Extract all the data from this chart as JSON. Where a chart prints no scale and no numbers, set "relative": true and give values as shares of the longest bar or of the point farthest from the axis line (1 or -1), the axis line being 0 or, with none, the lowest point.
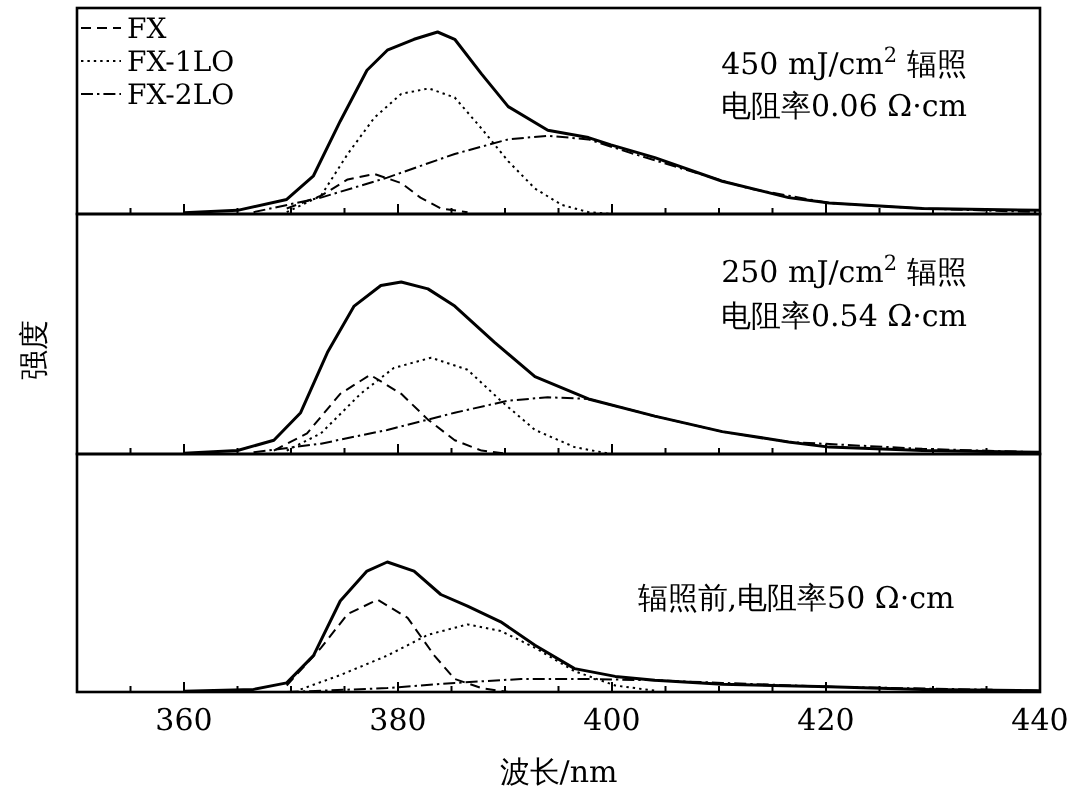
{
  "chart_data": [
    {
      "type": "line",
      "relative": true,
      "xlim": [
        350,
        440
      ],
      "xticks": [
        {
          "value": 355,
          "label": null
        },
        360,
        {
          "value": 365,
          "label": null
        },
        {
          "value": 370,
          "label": null
        },
        {
          "value": 375,
          "label": null
        },
        380,
        {
          "value": 385,
          "label": null
        },
        {
          "value": 390,
          "label": null
        },
        {
          "value": 395,
          "label": null
        },
        400,
        {
          "value": 405,
          "label": null
        },
        {
          "value": 410,
          "label": null
        },
        {
          "value": 415,
          "label": null
        },
        420,
        {
          "value": 425,
          "label": null
        },
        {
          "value": 430,
          "label": null
        },
        {
          "value": 435,
          "label": null
        },
        440
      ],
      "tick_labels": false,
      "legend": "top left",
      "grid": false,
      "marker": "none",
      "annotations": [
        "450 mJ/cm$^{2}$ 辐照",
        "电阻率0.06 Ω·cm"
      ],
      "series": [
        {
          "color": "#000000",
          "line_style": "solid",
          "x": [
            360,
            365,
            369.6,
            372.1,
            374.6,
            377.1,
            379,
            381.5,
            383.7,
            385.3,
            387.8,
            390.3,
            394,
            397.8,
            399.9,
            404,
            410.3,
            416.5,
            420.3,
            429,
            440
          ],
          "values": [
            0.007,
            0.02,
            0.08,
            0.21,
            0.51,
            0.79,
            0.9,
            0.96,
            1.0,
            0.96,
            0.77,
            0.59,
            0.46,
            0.42,
            0.38,
            0.31,
            0.18,
            0.09,
            0.06,
            0.03,
            0.02
          ]
        },
        {
          "name": "FX",
          "color": "#000000",
          "line_style": "dashed",
          "x": [
            369.6,
            372.8,
            375.3,
            377.8,
            380.3,
            382.1,
            384,
            386.5
          ],
          "values": [
            0.03,
            0.1,
            0.19,
            0.22,
            0.17,
            0.09,
            0.03,
            0.01
          ]
        },
        {
          "name": "FX-1LO",
          "color": "#000000",
          "line_style": "dotted",
          "x": [
            369.6,
            372.8,
            375.3,
            377.8,
            380.3,
            382.9,
            385.3,
            387.8,
            390.3,
            392.8,
            395.3,
            397.8,
            399.9
          ],
          "values": [
            0.01,
            0.1,
            0.33,
            0.53,
            0.66,
            0.69,
            0.64,
            0.47,
            0.29,
            0.14,
            0.05,
            0.01,
            0
          ]
        },
        {
          "name": "FX-2LO",
          "color": "#000000",
          "line_style": "dashdot",
          "x": [
            366.5,
            372.8,
            379,
            385.3,
            390.3,
            394,
            397.8,
            401.5,
            406.5,
            412.8,
            420.3,
            429,
            440
          ],
          "values": [
            0.01,
            0.09,
            0.2,
            0.33,
            0.41,
            0.43,
            0.41,
            0.34,
            0.25,
            0.14,
            0.06,
            0.03,
            0.01
          ]
        }
      ]
    },
    {
      "type": "line",
      "relative": true,
      "xlim": [
        350,
        440
      ],
      "xticks": [
        {
          "value": 355,
          "label": null
        },
        360,
        {
          "value": 365,
          "label": null
        },
        {
          "value": 370,
          "label": null
        },
        {
          "value": 375,
          "label": null
        },
        380,
        {
          "value": 385,
          "label": null
        },
        {
          "value": 390,
          "label": null
        },
        {
          "value": 395,
          "label": null
        },
        400,
        {
          "value": 405,
          "label": null
        },
        {
          "value": 410,
          "label": null
        },
        {
          "value": 415,
          "label": null
        },
        420,
        {
          "value": 425,
          "label": null
        },
        {
          "value": 430,
          "label": null
        },
        {
          "value": 435,
          "label": null
        },
        440
      ],
      "tick_labels": false,
      "legend": false,
      "grid": false,
      "marker": "none",
      "ylabel": "强度",
      "annotations": [
        "250 mJ/cm$^{2}$ 辐照",
        "电阻率0.54 Ω·cm"
      ],
      "series": [
        {
          "color": "#000000",
          "line_style": "solid",
          "x": [
            360,
            365,
            368.4,
            370.9,
            373.4,
            375.9,
            378.4,
            380.3,
            382.8,
            385.3,
            389,
            392.8,
            397.8,
            404,
            410.3,
            416.5,
            420.3,
            429,
            440
          ],
          "values": [
            0.004,
            0.02,
            0.08,
            0.24,
            0.59,
            0.86,
            0.98,
            1.0,
            0.96,
            0.86,
            0.65,
            0.45,
            0.32,
            0.22,
            0.13,
            0.07,
            0.04,
            0.02,
            0.01
          ]
        },
        {
          "color": "#000000",
          "line_style": "dashed",
          "x": [
            368.4,
            371.5,
            374.6,
            377.4,
            380.3,
            382.8,
            385.3,
            387.8,
            390.3
          ],
          "values": [
            0.02,
            0.12,
            0.35,
            0.46,
            0.35,
            0.2,
            0.08,
            0.02,
            0
          ]
        },
        {
          "color": "#000000",
          "line_style": "dotted",
          "x": [
            369.6,
            372.8,
            376.5,
            379.6,
            383.1,
            386.5,
            389.6,
            392.8,
            396.5,
            399.9
          ],
          "values": [
            0.02,
            0.12,
            0.35,
            0.5,
            0.56,
            0.49,
            0.31,
            0.14,
            0.04,
            0
          ]
        },
        {
          "color": "#000000",
          "line_style": "dashdot",
          "x": [
            366.5,
            372.8,
            379,
            385.3,
            390.3,
            394,
            397.8,
            404,
            410.3,
            416.5,
            429,
            440
          ],
          "values": [
            0.01,
            0.06,
            0.14,
            0.24,
            0.31,
            0.33,
            0.32,
            0.22,
            0.13,
            0.07,
            0.03,
            0.01
          ]
        }
      ]
    },
    {
      "type": "line",
      "relative": true,
      "xlim": [
        350,
        440
      ],
      "xticks": [
        {
          "value": 355,
          "label": null
        },
        {
          "value": 360,
          "label": "360"
        },
        {
          "value": 365,
          "label": null
        },
        {
          "value": 370,
          "label": null
        },
        {
          "value": 375,
          "label": null
        },
        {
          "value": 380,
          "label": "380"
        },
        {
          "value": 385,
          "label": null
        },
        {
          "value": 390,
          "label": null
        },
        {
          "value": 395,
          "label": null
        },
        {
          "value": 400,
          "label": "400"
        },
        {
          "value": 405,
          "label": null
        },
        {
          "value": 410,
          "label": null
        },
        {
          "value": 415,
          "label": null
        },
        {
          "value": 420,
          "label": "420"
        },
        {
          "value": 425,
          "label": null
        },
        {
          "value": 430,
          "label": null
        },
        {
          "value": 435,
          "label": null
        },
        {
          "value": 440,
          "label": "440"
        }
      ],
      "tick_labels": "x",
      "legend": false,
      "grid": false,
      "marker": "none",
      "xlabel": "波长/nm",
      "annotations": [
        "辐照前,电阻率50 Ω·cm"
      ],
      "series": [
        {
          "color": "#000000",
          "line_style": "solid",
          "x": [
            360,
            366.5,
            369.6,
            372.1,
            374.6,
            377.1,
            379,
            381.5,
            384,
            386.5,
            389.6,
            392.8,
            396.5,
            400.3,
            404,
            410.3,
            420.3,
            429,
            440
          ],
          "values": [
            0.005,
            0.02,
            0.07,
            0.28,
            0.7,
            0.93,
            1.0,
            0.93,
            0.75,
            0.66,
            0.54,
            0.36,
            0.18,
            0.12,
            0.09,
            0.06,
            0.04,
            0.02,
            0.01
          ]
        },
        {
          "color": "#000000",
          "line_style": "dashed",
          "x": [
            369.6,
            372.8,
            375.3,
            378.1,
            380.9,
            383.4,
            385.3,
            387.8,
            390.3
          ],
          "values": [
            0.05,
            0.34,
            0.6,
            0.71,
            0.57,
            0.28,
            0.1,
            0.03,
            0
          ]
        },
        {
          "color": "#000000",
          "line_style": "dotted",
          "x": [
            370.9,
            374.6,
            379,
            382.8,
            386.5,
            389.6,
            392.8,
            396.5,
            400.3,
            404
          ],
          "values": [
            0.02,
            0.13,
            0.28,
            0.44,
            0.52,
            0.47,
            0.34,
            0.16,
            0.05,
            0.01
          ]
        },
        {
          "color": "#000000",
          "line_style": "dashdot",
          "x": [
            369.6,
            379,
            385.3,
            391.5,
            397.8,
            404,
            410.3,
            420.3,
            440
          ],
          "values": [
            0,
            0.03,
            0.07,
            0.1,
            0.1,
            0.09,
            0.07,
            0.04,
            0.01
          ]
        }
      ]
    }
  ]
}
